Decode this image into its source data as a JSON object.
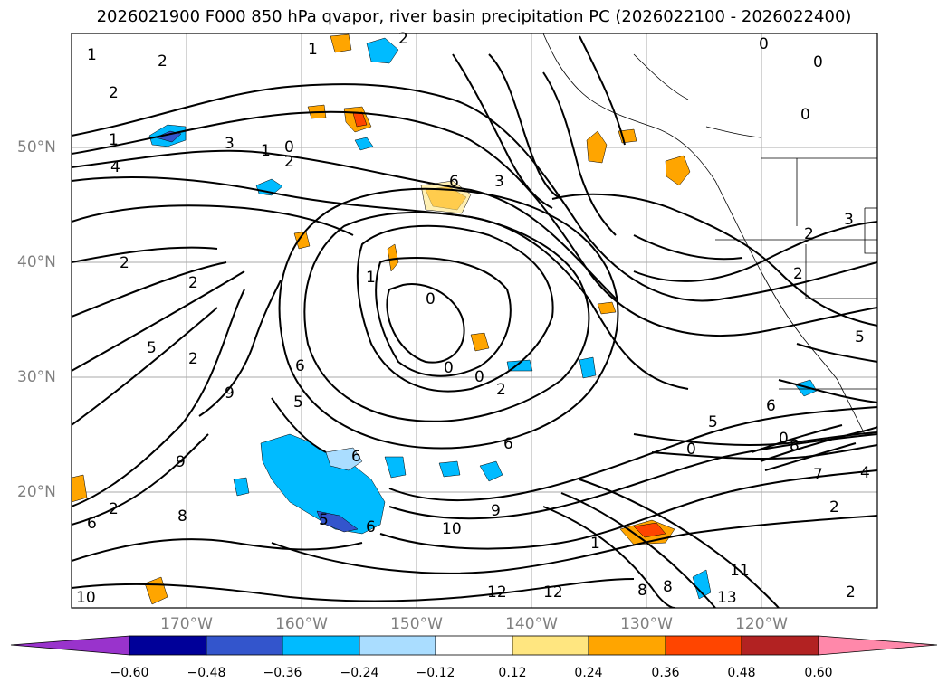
{
  "title": "2026021900 F000 850 hPa qvapor, river basin precipitation PC (2026022100 - 2026022400)",
  "map": {
    "lat_labels": [
      "50°N",
      "40°N",
      "30°N",
      "20°N"
    ],
    "lon_labels": [
      "170°W",
      "160°W",
      "150°W",
      "140°W",
      "130°W",
      "120°W"
    ],
    "contour_labels": [
      "1",
      "2",
      "2",
      "2",
      "1",
      "4",
      "3",
      "1",
      "0",
      "2",
      "6",
      "3",
      "0",
      "0",
      "0",
      "2",
      "2",
      "1",
      "2",
      "2",
      "5",
      "2",
      "9",
      "6",
      "5",
      "9",
      "0",
      "0",
      "6",
      "8",
      "6",
      "5",
      "6",
      "9",
      "6",
      "10",
      "12",
      "12",
      "1",
      "8",
      "8",
      "11",
      "13",
      "6",
      "5",
      "0",
      "8",
      "7",
      "2",
      "2",
      "3",
      "2",
      "5",
      "4",
      "2",
      "0",
      "0",
      "10",
      "1"
    ]
  },
  "colorbar": {
    "ticks": [
      "−0.60",
      "−0.48",
      "−0.36",
      "−0.24",
      "−0.12",
      "0.12",
      "0.24",
      "0.36",
      "0.48",
      "0.60"
    ],
    "colors": {
      "under": "#9933cc",
      "n060": "#000099",
      "n048": "#3355cc",
      "n036": "#00bbff",
      "n024": "#aaddff",
      "zero": "#ffffff",
      "p012": "#ffe680",
      "p024": "#ffa500",
      "p036": "#ff4500",
      "p048": "#b22222",
      "over": "#ff88aa"
    }
  }
}
